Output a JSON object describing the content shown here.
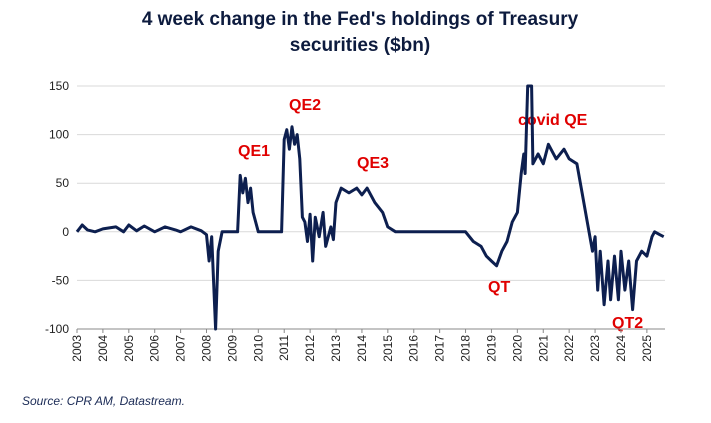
{
  "chart_data": {
    "type": "line",
    "title": [
      "4 week change in the Fed's holdings of Treasury",
      "securities ($bn)"
    ],
    "source": "Source: CPR AM, Datastream.",
    "annotations": [
      "QE1",
      "QE2",
      "QE3",
      "QT",
      "covid QE",
      "QT2"
    ],
    "x": [
      2003.0,
      2003.2,
      2003.4,
      2003.7,
      2004.0,
      2004.5,
      2004.8,
      2005.0,
      2005.3,
      2005.6,
      2006.0,
      2006.4,
      2006.8,
      2007.0,
      2007.4,
      2007.8,
      2008.0,
      2008.1,
      2008.2,
      2008.35,
      2008.45,
      2008.6,
      2009.0,
      2009.2,
      2009.3,
      2009.4,
      2009.5,
      2009.6,
      2009.7,
      2009.8,
      2010.0,
      2010.5,
      2010.9,
      2011.0,
      2011.1,
      2011.2,
      2011.3,
      2011.4,
      2011.5,
      2011.6,
      2011.7,
      2011.8,
      2011.9,
      2012.0,
      2012.1,
      2012.2,
      2012.35,
      2012.5,
      2012.6,
      2012.8,
      2012.9,
      2013.0,
      2013.2,
      2013.5,
      2013.8,
      2014.0,
      2014.2,
      2014.5,
      2014.8,
      2015.0,
      2015.3,
      2016.0,
      2017.0,
      2018.0,
      2018.3,
      2018.6,
      2018.8,
      2019.0,
      2019.2,
      2019.4,
      2019.6,
      2019.8,
      2020.0,
      2020.15,
      2020.25,
      2020.3,
      2020.4,
      2020.55,
      2020.6,
      2020.8,
      2021.0,
      2021.2,
      2021.5,
      2021.8,
      2022.0,
      2022.3,
      2022.5,
      2022.7,
      2022.9,
      2023.0,
      2023.1,
      2023.2,
      2023.35,
      2023.5,
      2023.6,
      2023.75,
      2023.9,
      2024.0,
      2024.15,
      2024.3,
      2024.45,
      2024.6,
      2024.8,
      2025.0,
      2025.2,
      2025.3,
      2025.5,
      2025.65
    ],
    "series": [
      {
        "color": "#0d1f4f",
        "values": [
          0,
          7,
          2,
          0,
          3,
          5,
          0,
          7,
          1,
          6,
          0,
          5,
          2,
          0,
          5,
          1,
          -3,
          -30,
          -5,
          -100,
          -20,
          0,
          0,
          0,
          58,
          40,
          55,
          30,
          45,
          20,
          0,
          0,
          0,
          95,
          105,
          85,
          108,
          90,
          100,
          75,
          15,
          10,
          -10,
          18,
          -30,
          15,
          -5,
          20,
          -15,
          5,
          -8,
          30,
          45,
          40,
          45,
          38,
          45,
          30,
          20,
          5,
          0,
          0,
          0,
          0,
          -10,
          -15,
          -25,
          -30,
          -35,
          -20,
          -10,
          10,
          20,
          60,
          80,
          60,
          150,
          150,
          70,
          80,
          70,
          90,
          75,
          85,
          75,
          70,
          40,
          10,
          -20,
          -5,
          -60,
          -20,
          -75,
          -30,
          -70,
          -25,
          -70,
          -20,
          -60,
          -30,
          -80,
          -30,
          -20,
          -25,
          -5,
          0,
          -3,
          -5
        ]
      }
    ],
    "xlim": [
      2003,
      2025.7
    ],
    "xticks": [
      2003,
      2004,
      2005,
      2006,
      2007,
      2008,
      2009,
      2010,
      2011,
      2012,
      2013,
      2014,
      2015,
      2016,
      2017,
      2018,
      2019,
      2020,
      2021,
      2022,
      2023,
      2024,
      2025
    ],
    "ylim": [
      -100,
      150
    ],
    "yticks": [
      -100,
      -50,
      0,
      50,
      100,
      150
    ],
    "grid": true
  }
}
